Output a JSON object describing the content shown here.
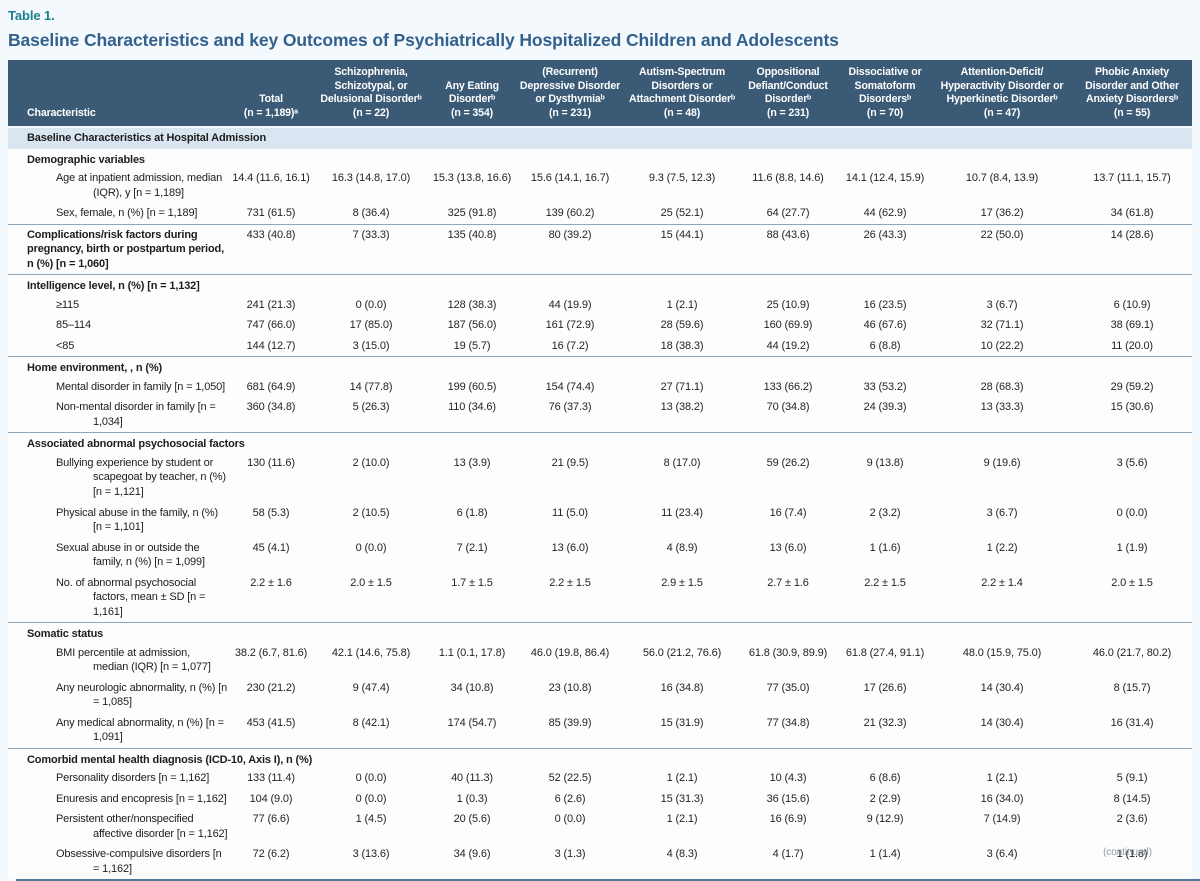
{
  "page": {
    "table_label": "Table 1.",
    "title": "Baseline Characteristics and key Outcomes of Psychiatrically Hospitalized Children and Adolescents",
    "continued_note": "(continued)"
  },
  "table": {
    "columns": [
      {
        "label": "Characteristic"
      },
      {
        "label": "Total\n(n = 1,189)ᵃ"
      },
      {
        "label": "Schizophrenia,\nSchizotypal, or\nDelusional Disorderᵇ\n(n = 22)"
      },
      {
        "label": "Any Eating\nDisorderᵇ\n(n = 354)"
      },
      {
        "label": "(Recurrent)\nDepressive Disorder\nor Dysthymiaᵇ\n(n = 231)"
      },
      {
        "label": "Autism-Spectrum\nDisorders or\nAttachment Disorderᵇ\n(n = 48)"
      },
      {
        "label": "Oppositional\nDefiant/Conduct\nDisorderᵇ\n(n = 231)"
      },
      {
        "label": "Dissociative or\nSomatoform\nDisordersᵇ\n(n = 70)"
      },
      {
        "label": "Attention-Deficit/\nHyperactivity Disorder or\nHyperkinetic Disorderᵇ\n(n = 47)"
      },
      {
        "label": "Phobic Anxiety\nDisorder and Other\nAnxiety Disordersᵇ\n(n = 55)"
      }
    ],
    "rows": [
      {
        "type": "band",
        "label": "Baseline Characteristics at Hospital Admission"
      },
      {
        "type": "group",
        "label": "Demographic variables"
      },
      {
        "type": "data",
        "label": "Age at inpatient admission, median (IQR), y [n = 1,189]",
        "values": [
          "14.4 (11.6, 16.1)",
          "16.3 (14.8, 17.0)",
          "15.3 (13.8, 16.6)",
          "15.6 (14.1, 16.7)",
          "9.3 (7.5, 12.3)",
          "11.6 (8.8, 14.6)",
          "14.1 (12.4, 15.9)",
          "10.7 (8.4, 13.9)",
          "13.7 (11.1, 15.7)"
        ]
      },
      {
        "type": "data",
        "label": "Sex, female, n (%) [n = 1,189]",
        "values": [
          "731 (61.5)",
          "8 (36.4)",
          "325 (91.8)",
          "139 (60.2)",
          "25 (52.1)",
          "64 (27.7)",
          "44 (62.9)",
          "17 (36.2)",
          "34 (61.8)"
        ]
      },
      {
        "type": "bolddata",
        "rule": true,
        "label": "Complications/risk factors during pregnancy, birth or postpartum period, n (%) [n = 1,060]",
        "values": [
          "433 (40.8)",
          "7 (33.3)",
          "135 (40.8)",
          "80 (39.2)",
          "15 (44.1)",
          "88 (43.6)",
          "26 (43.3)",
          "22 (50.0)",
          "14 (28.6)"
        ]
      },
      {
        "type": "group",
        "rule": true,
        "label": "Intelligence level, n (%) [n = 1,132]"
      },
      {
        "type": "data",
        "label": "≥115",
        "values": [
          "241 (21.3)",
          "0 (0.0)",
          "128 (38.3)",
          "44 (19.9)",
          "1 (2.1)",
          "25 (10.9)",
          "16 (23.5)",
          "3 (6.7)",
          "6 (10.9)"
        ]
      },
      {
        "type": "data",
        "label": "85–114",
        "values": [
          "747 (66.0)",
          "17 (85.0)",
          "187 (56.0)",
          "161 (72.9)",
          "28 (59.6)",
          "160 (69.9)",
          "46 (67.6)",
          "32 (71.1)",
          "38 (69.1)"
        ]
      },
      {
        "type": "data",
        "label": "<85",
        "values": [
          "144 (12.7)",
          "3 (15.0)",
          "19 (5.7)",
          "16 (7.2)",
          "18 (38.3)",
          "44 (19.2)",
          "6 (8.8)",
          "10 (22.2)",
          "11 (20.0)"
        ]
      },
      {
        "type": "group",
        "rule": true,
        "label": "Home environment, , n (%)"
      },
      {
        "type": "data",
        "label": "Mental disorder in family [n = 1,050]",
        "values": [
          "681 (64.9)",
          "14 (77.8)",
          "199 (60.5)",
          "154 (74.4)",
          "27 (71.1)",
          "133 (66.2)",
          "33 (53.2)",
          "28 (68.3)",
          "29 (59.2)"
        ]
      },
      {
        "type": "data",
        "label": "Non-mental disorder in family [n = 1,034]",
        "values": [
          "360 (34.8)",
          "5 (26.3)",
          "110 (34.6)",
          "76 (37.3)",
          "13 (38.2)",
          "70 (34.8)",
          "24 (39.3)",
          "13 (33.3)",
          "15 (30.6)"
        ]
      },
      {
        "type": "group",
        "rule": true,
        "label": "Associated abnormal psychosocial factors"
      },
      {
        "type": "data",
        "label": "Bullying experience by student or scapegoat by teacher, n (%) [n = 1,121]",
        "values": [
          "130 (11.6)",
          "2 (10.0)",
          "13 (3.9)",
          "21 (9.5)",
          "8 (17.0)",
          "59 (26.2)",
          "9 (13.8)",
          "9 (19.6)",
          "3 (5.6)"
        ]
      },
      {
        "type": "data",
        "label": "Physical abuse in the family, n (%) [n = 1,101]",
        "values": [
          "58 (5.3)",
          "2 (10.5)",
          "6 (1.8)",
          "11 (5.0)",
          "11 (23.4)",
          "16 (7.4)",
          "2 (3.2)",
          "3 (6.7)",
          "0 (0.0)"
        ]
      },
      {
        "type": "data",
        "label": "Sexual abuse in or outside the family, n (%) [n = 1,099]",
        "values": [
          "45 (4.1)",
          "0 (0.0)",
          "7 (2.1)",
          "13 (6.0)",
          "4 (8.9)",
          "13 (6.0)",
          "1 (1.6)",
          "1 (2.2)",
          "1 (1.9)"
        ]
      },
      {
        "type": "data",
        "label": "No. of abnormal psychosocial factors, mean ± SD [n = 1,161]",
        "values": [
          "2.2 ± 1.6",
          "2.0 ± 1.5",
          "1.7 ± 1.5",
          "2.2 ± 1.5",
          "2.9 ± 1.5",
          "2.7 ± 1.6",
          "2.2 ± 1.5",
          "2.2 ± 1.4",
          "2.0 ± 1.5"
        ]
      },
      {
        "type": "group",
        "rule": true,
        "label": "Somatic status"
      },
      {
        "type": "data",
        "label": "BMI percentile at admission, median (IQR) [n = 1,077]",
        "values": [
          "38.2 (6.7, 81.6)",
          "42.1 (14.6, 75.8)",
          "1.1 (0.1, 17.8)",
          "46.0 (19.8, 86.4)",
          "56.0 (21.2, 76.6)",
          "61.8 (30.9, 89.9)",
          "61.8 (27.4, 91.1)",
          "48.0 (15.9, 75.0)",
          "46.0 (21.7, 80.2)"
        ]
      },
      {
        "type": "data",
        "label": "Any neurologic abnormality, n (%) [n = 1,085]",
        "values": [
          "230 (21.2)",
          "9 (47.4)",
          "34 (10.8)",
          "23 (10.8)",
          "16 (34.8)",
          "77 (35.0)",
          "17 (26.6)",
          "14 (30.4)",
          "8 (15.7)"
        ]
      },
      {
        "type": "data",
        "label": "Any medical abnormality, n (%) [n = 1,091]",
        "values": [
          "453 (41.5)",
          "8 (42.1)",
          "174 (54.7)",
          "85 (39.9)",
          "15 (31.9)",
          "77 (34.8)",
          "21 (32.3)",
          "14 (30.4)",
          "16 (31.4)"
        ]
      },
      {
        "type": "group",
        "rule": true,
        "label": "Comorbid mental health diagnosis (ICD-10, Axis I), n (%)"
      },
      {
        "type": "data",
        "label": "Personality disorders [n = 1,162]",
        "values": [
          "133 (11.4)",
          "0 (0.0)",
          "40 (11.3)",
          "52 (22.5)",
          "1 (2.1)",
          "10 (4.3)",
          "6 (8.6)",
          "1 (2.1)",
          "5 (9.1)"
        ]
      },
      {
        "type": "data",
        "label": "Enuresis and encopresis [n = 1,162]",
        "values": [
          "104 (9.0)",
          "0 (0.0)",
          "1 (0.3)",
          "6 (2.6)",
          "15 (31.3)",
          "36 (15.6)",
          "2 (2.9)",
          "16 (34.0)",
          "8 (14.5)"
        ]
      },
      {
        "type": "data",
        "label": "Persistent other/nonspecified affective disorder [n = 1,162]",
        "values": [
          "77 (6.6)",
          "1 (4.5)",
          "20 (5.6)",
          "0 (0.0)",
          "1 (2.1)",
          "16 (6.9)",
          "9 (12.9)",
          "7 (14.9)",
          "2 (3.6)"
        ]
      },
      {
        "type": "data",
        "label": "Obsessive-compulsive disorders [n = 1,162]",
        "last": true,
        "values": [
          "72 (6.2)",
          "3 (13.6)",
          "34 (9.6)",
          "3 (1.3)",
          "4 (8.3)",
          "4 (1.7)",
          "1 (1.4)",
          "3 (6.4)",
          "1 (1.8)"
        ]
      }
    ]
  }
}
